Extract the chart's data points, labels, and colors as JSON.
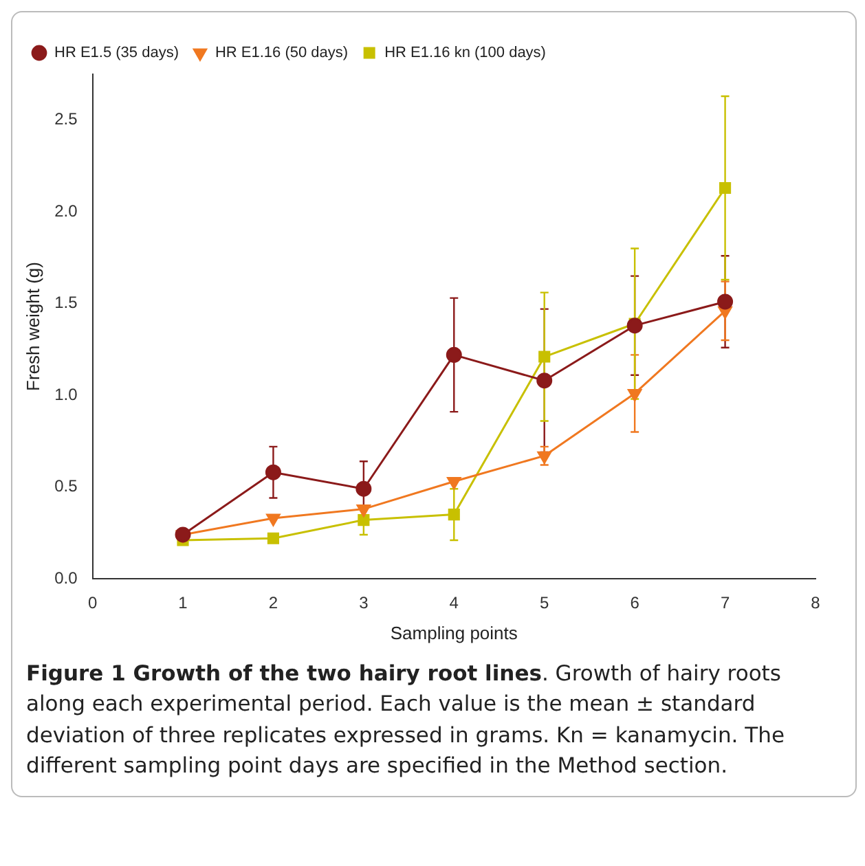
{
  "chart_data": {
    "type": "line",
    "title": "Figure 1 Growth of the two hairy root lines",
    "xlabel": "Sampling points",
    "ylabel": "Fresh weight (g)",
    "annotations": [
      ". Growth of hairy roots along each experimental period. Each value is the mean ± standard deviation of three replicates expressed in grams. Kn = kanamycin. The different sampling point days are specified in the Method section."
    ],
    "x": [
      1,
      2,
      3,
      4,
      5,
      6,
      7
    ],
    "series": [
      {
        "name": "HR E1.5 (35 days)",
        "color": "#8b1a1a",
        "marker": "circle",
        "values": [
          0.24,
          0.58,
          0.49,
          1.22,
          1.08,
          1.38,
          1.51
        ],
        "errors": [
          null,
          0.14,
          0.15,
          0.31,
          0.39,
          0.27,
          0.25
        ]
      },
      {
        "name": "HR E1.16 (50 days)",
        "color": "#f07820",
        "marker": "triangle",
        "values": [
          0.24,
          0.33,
          0.38,
          0.53,
          0.67,
          1.01,
          1.46
        ],
        "errors": [
          null,
          null,
          null,
          null,
          0.05,
          0.21,
          0.16
        ]
      },
      {
        "name": "HR E1.16 kn (100 days)",
        "color": "#c8c000",
        "marker": "square",
        "values": [
          0.21,
          0.22,
          0.32,
          0.35,
          1.21,
          1.39,
          2.13
        ],
        "errors": [
          null,
          null,
          0.08,
          0.14,
          0.35,
          0.41,
          0.5
        ]
      }
    ],
    "xlim": [
      0,
      8
    ],
    "xticks": [
      0,
      1,
      2,
      3,
      4,
      5,
      6,
      7,
      8
    ],
    "ylim": [
      0,
      2.75
    ],
    "yticks": [
      {
        "value": 0,
        "label": "0.0"
      },
      {
        "value": 0.5,
        "label": "0.5"
      },
      {
        "value": 1,
        "label": "1.0"
      },
      {
        "value": 1.5,
        "label": "1.5"
      },
      {
        "value": 2,
        "label": "2.0"
      },
      {
        "value": 2.5,
        "label": "2.5"
      }
    ],
    "grid": false,
    "legend": "top left"
  }
}
